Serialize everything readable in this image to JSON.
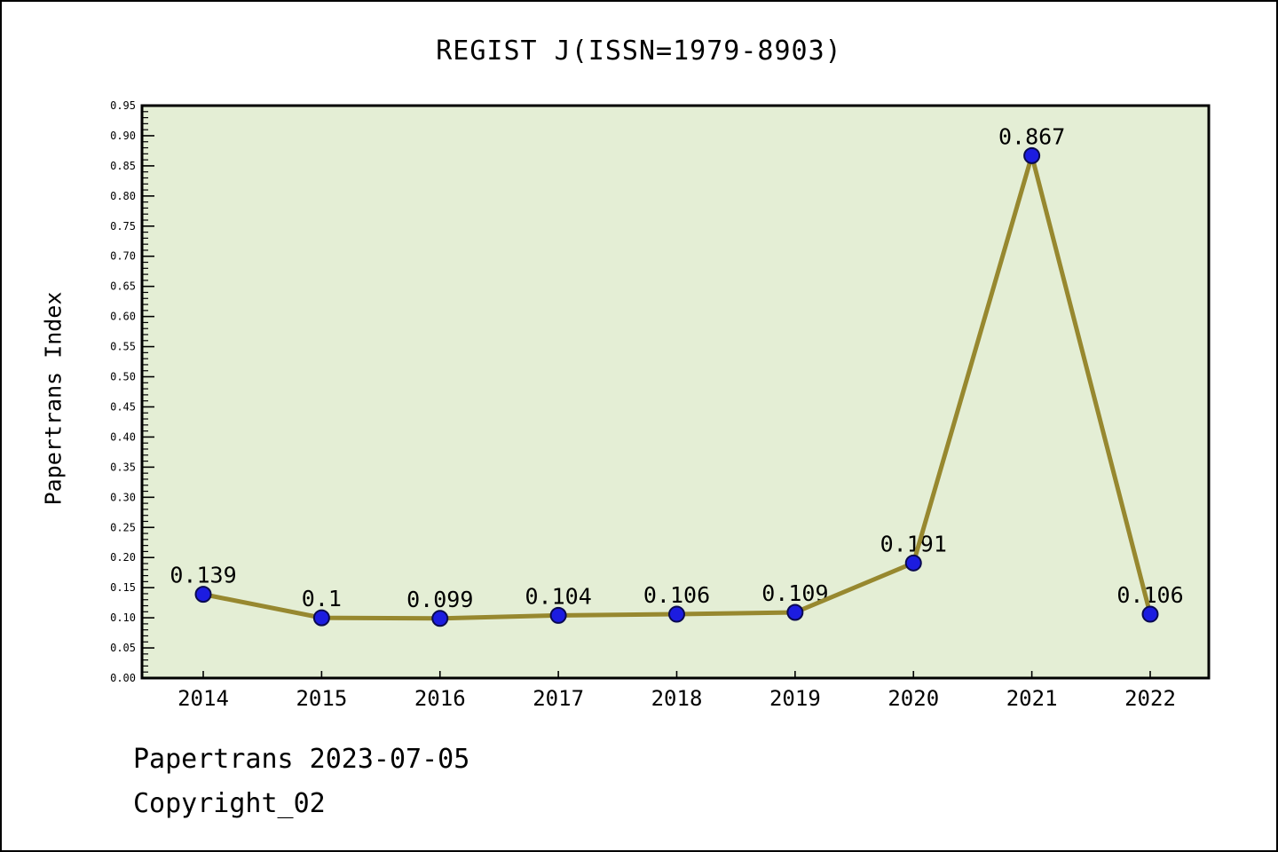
{
  "chart_data": {
    "type": "line",
    "title": "REGIST J(ISSN=1979-8903)",
    "xlabel": "",
    "ylabel": "Papertrans Index",
    "categories": [
      "2014",
      "2015",
      "2016",
      "2017",
      "2018",
      "2019",
      "2020",
      "2021",
      "2022"
    ],
    "series": [
      {
        "name": "Papertrans Index",
        "values": [
          0.139,
          0.1,
          0.099,
          0.104,
          0.106,
          0.109,
          0.191,
          0.867,
          0.106
        ],
        "point_labels": [
          "0.139",
          "0.1",
          "0.099",
          "0.104",
          "0.106",
          "0.109",
          "0.191",
          "0.867",
          "0.106"
        ]
      }
    ],
    "ylim": [
      0.0,
      0.95
    ],
    "ytick_major_step": 0.05,
    "ytick_minor_step": 0.01,
    "grid": false,
    "legend_position": "none",
    "colors": {
      "line": "#97882f",
      "marker_fill": "#1c1ce0",
      "marker_edge": "#0a0a50",
      "plot_background": "#e4eed5",
      "axis": "#000000",
      "text": "#000000",
      "page_background": "#ffffff"
    }
  },
  "footer": {
    "line1": "Papertrans 2023-07-05",
    "line2": "Copyright_02"
  }
}
